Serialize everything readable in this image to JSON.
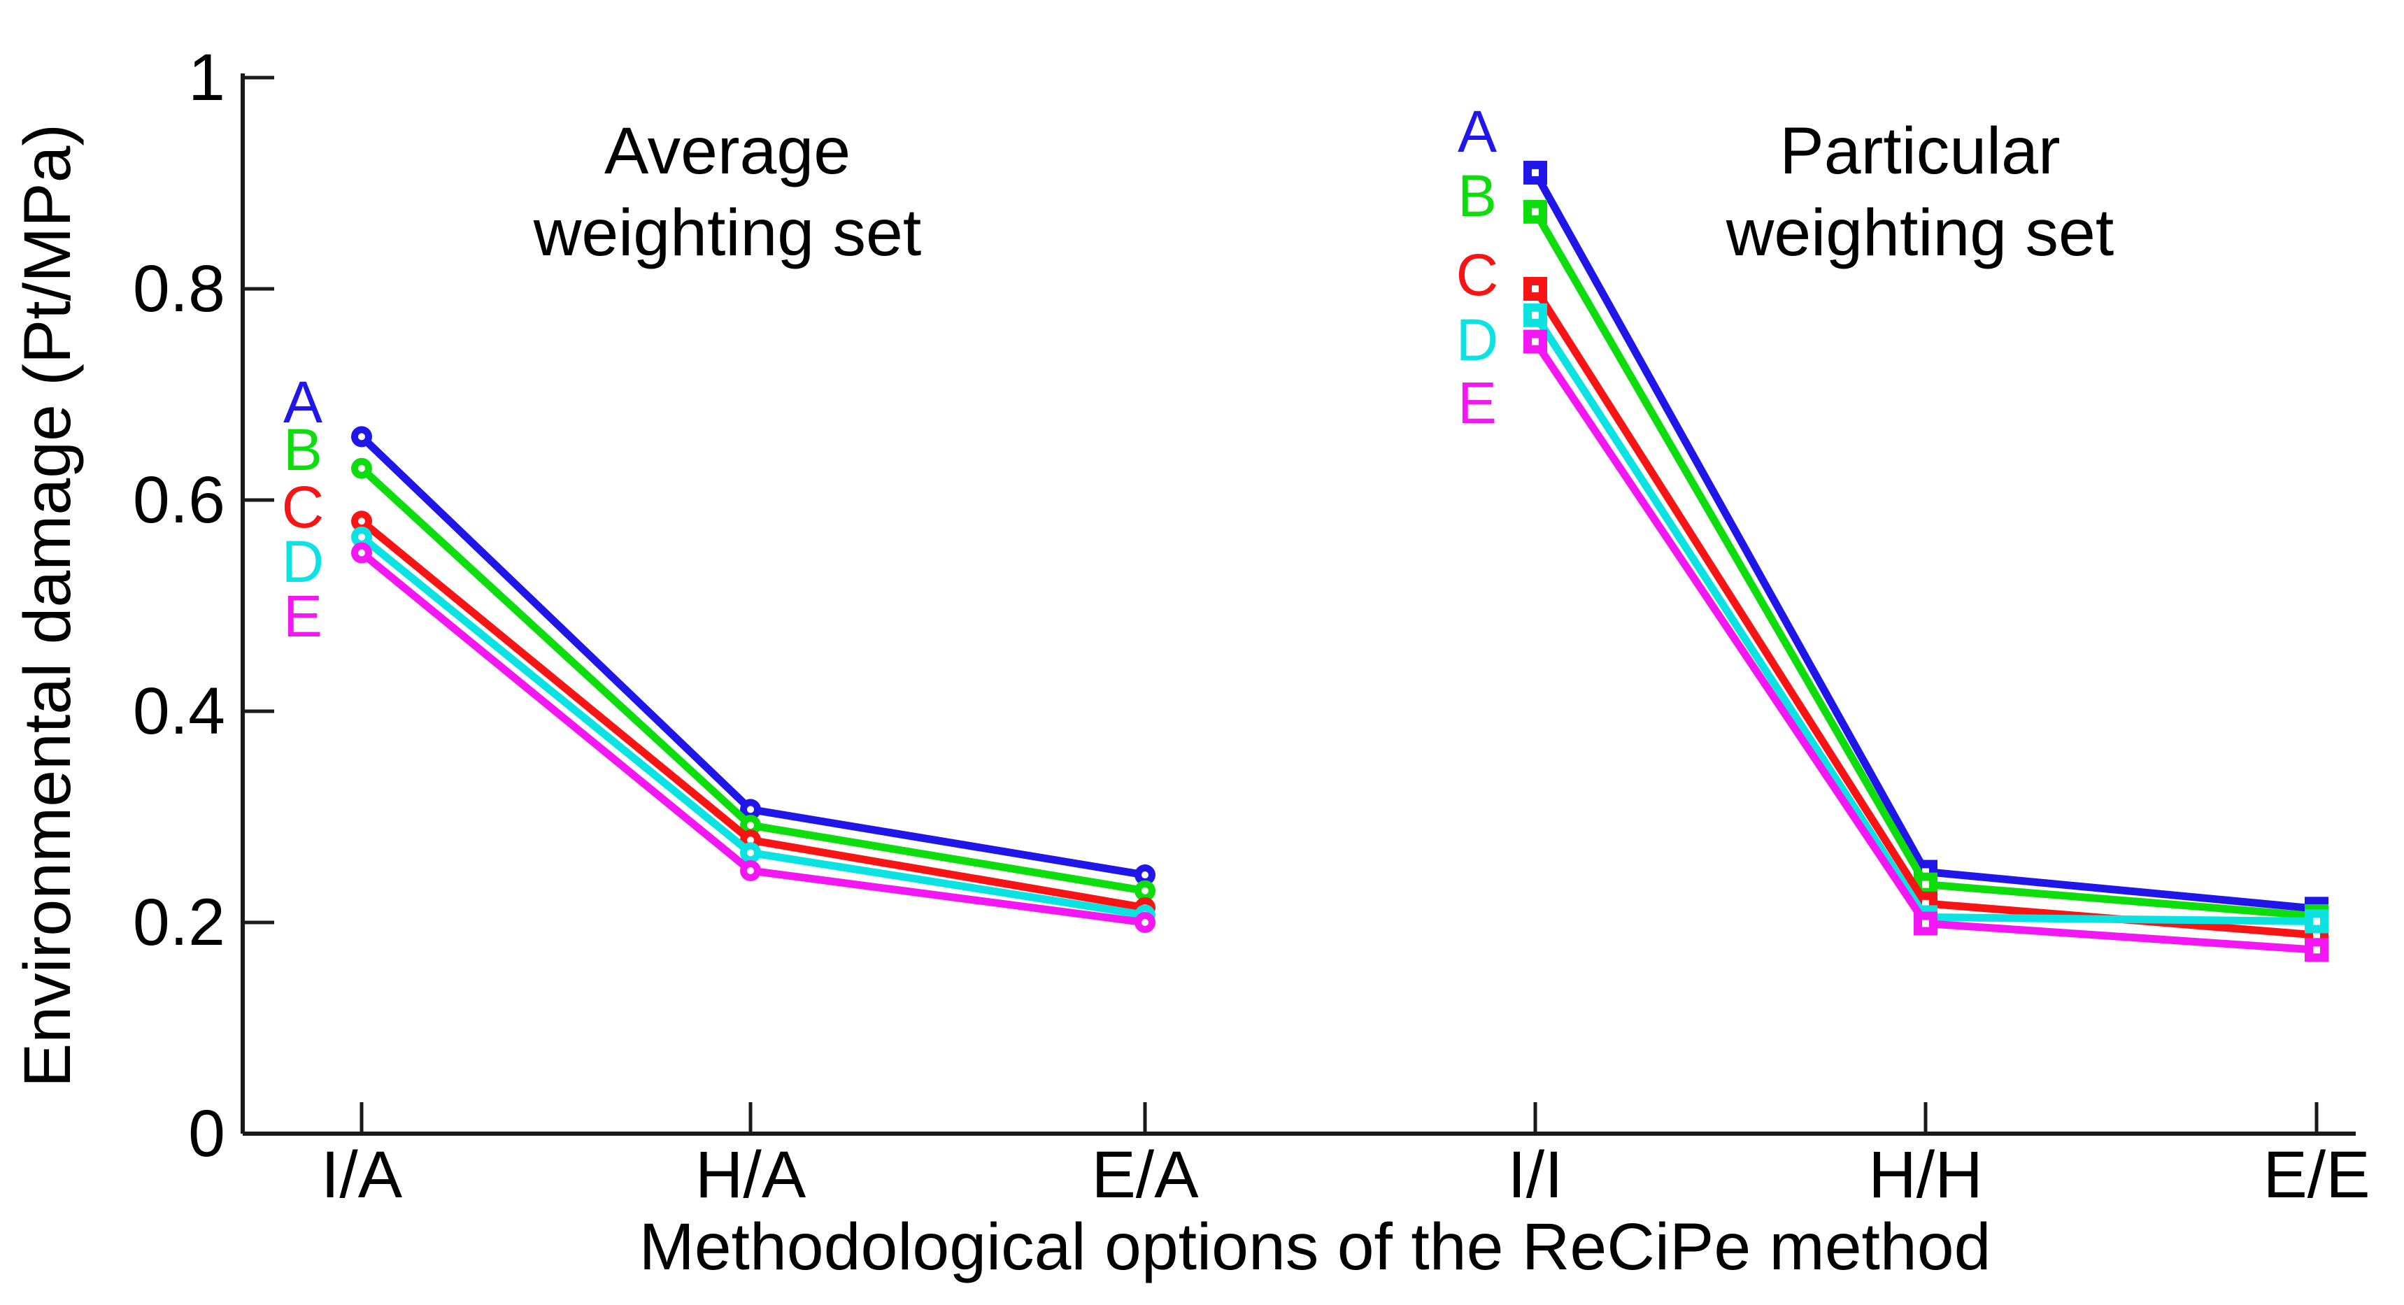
{
  "chart_data": {
    "type": "line",
    "title_left_line1": "Average",
    "title_left_line2": "weighting set",
    "title_right_line1": "Particular",
    "title_right_line2": "weighting set",
    "ylabel": "Environmental damage (Pt/MPa)",
    "xlabel": "Methodological options of the ReCiPe method",
    "ylim": [
      0,
      1
    ],
    "grid": false,
    "y_tick_values": [
      0,
      0.2,
      0.4,
      0.6,
      0.8,
      1
    ],
    "y_tick_labels": [
      "0",
      "0.2",
      "0.4",
      "0.6",
      "0.8",
      "1"
    ],
    "x_tick_labels": [
      "I/A",
      "H/A",
      "E/A",
      "I/I",
      "H/H",
      "E/E"
    ],
    "series_colors": {
      "A": "#2016e8",
      "B": "#0ddd0d",
      "C": "#f61414",
      "D": "#0de2e2",
      "E": "#f318f3"
    },
    "groups": [
      {
        "name": "Average weighting set",
        "marker": "circle",
        "categories": [
          "I/A",
          "H/A",
          "E/A"
        ],
        "series": [
          {
            "name": "A",
            "color": "#2016e8",
            "values": [
              0.66,
              0.307,
              0.245
            ]
          },
          {
            "name": "B",
            "color": "#0ddd0d",
            "values": [
              0.63,
              0.292,
              0.23
            ]
          },
          {
            "name": "C",
            "color": "#f61414",
            "values": [
              0.58,
              0.278,
              0.214
            ]
          },
          {
            "name": "D",
            "color": "#0de2e2",
            "values": [
              0.565,
              0.266,
              0.207
            ]
          },
          {
            "name": "E",
            "color": "#f318f3",
            "values": [
              0.55,
              0.249,
              0.2
            ]
          }
        ]
      },
      {
        "name": "Particular weighting set",
        "marker": "square",
        "categories": [
          "I/I",
          "H/H",
          "E/E"
        ],
        "series": [
          {
            "name": "A",
            "color": "#2016e8",
            "values": [
              0.91,
              0.248,
              0.213
            ]
          },
          {
            "name": "B",
            "color": "#0ddd0d",
            "values": [
              0.873,
              0.236,
              0.206
            ]
          },
          {
            "name": "C",
            "color": "#f61414",
            "values": [
              0.8,
              0.218,
              0.188
            ]
          },
          {
            "name": "D",
            "color": "#0de2e2",
            "values": [
              0.775,
              0.205,
              0.201
            ]
          },
          {
            "name": "E",
            "color": "#f318f3",
            "values": [
              0.75,
              0.199,
              0.174
            ]
          }
        ]
      }
    ]
  }
}
